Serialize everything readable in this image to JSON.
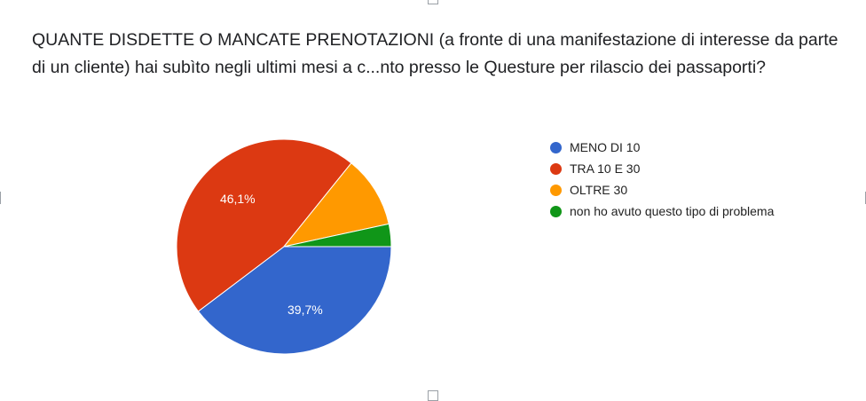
{
  "question": {
    "title": "QUANTE DISDETTE O MANCATE PRENOTAZIONI (a fronte di una manifestazione di interesse da parte di un cliente) hai subìto negli ultimi mesi a c...nto presso le Questure per rilascio dei passaporti?"
  },
  "chart_data": {
    "type": "pie",
    "title": "",
    "legend_position": "right",
    "slices": [
      {
        "label": "MENO DI 10",
        "value": 39.7,
        "display": "39,7%",
        "color": "#3366cc"
      },
      {
        "label": "TRA 10 E 30",
        "value": 46.1,
        "display": "46,1%",
        "color": "#dc3912"
      },
      {
        "label": "OLTRE 30",
        "value": 10.8,
        "display": "",
        "color": "#ff9900"
      },
      {
        "label": "non ho avuto questo tipo di problema",
        "value": 3.4,
        "display": "",
        "color": "#109618"
      }
    ]
  }
}
